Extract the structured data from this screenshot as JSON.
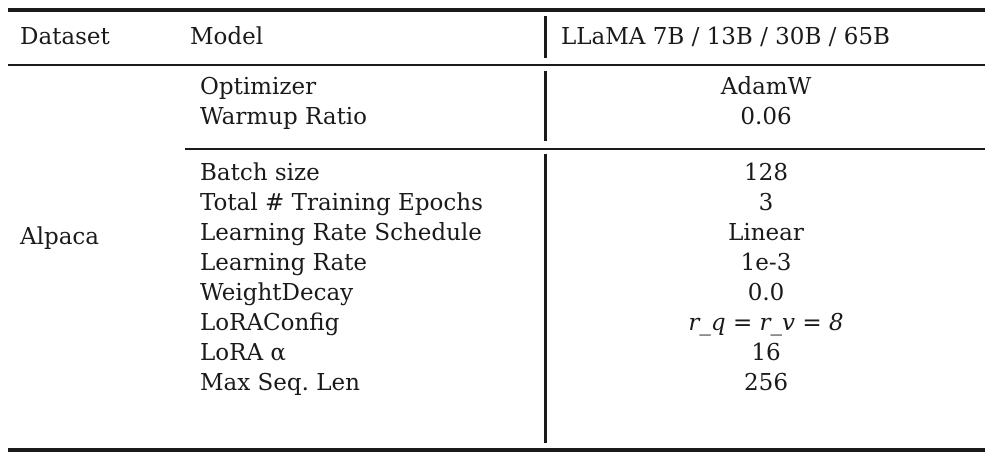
{
  "table": {
    "headers": {
      "dataset": "Dataset",
      "model": "Model",
      "models": "LLaMA 7B / 13B / 30B / 65B"
    },
    "dataset": "Alpaca",
    "group1": [
      {
        "param": "Optimizer",
        "value": "AdamW"
      },
      {
        "param": "Warmup Ratio",
        "value": "0.06"
      }
    ],
    "group2": [
      {
        "param": "Batch size",
        "value": "128"
      },
      {
        "param": "Total # Training Epochs",
        "value": "3"
      },
      {
        "param": "Learning Rate Schedule",
        "value": "Linear"
      },
      {
        "param": "Learning Rate",
        "value": "1e-3"
      },
      {
        "param": "WeightDecay",
        "value": "0.0"
      },
      {
        "param": "LoRAConfig",
        "value": "r_q = r_v = 8"
      },
      {
        "param": "LoRA α",
        "value": "16"
      },
      {
        "param": "Max Seq. Len",
        "value": "256"
      }
    ]
  }
}
